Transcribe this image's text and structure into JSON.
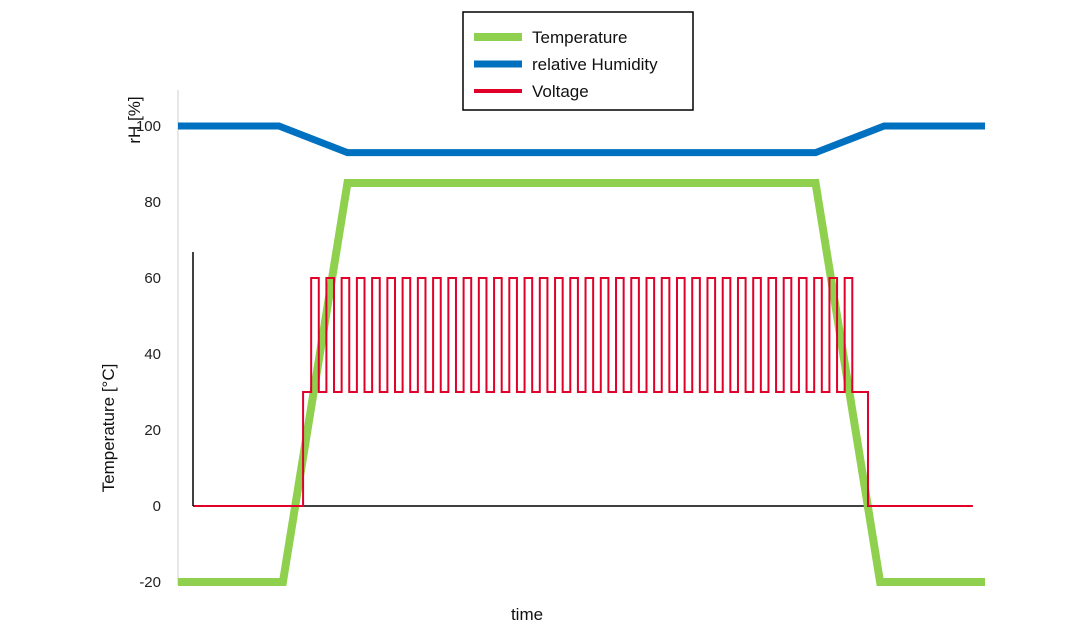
{
  "chart_data": {
    "type": "line",
    "xlabel": "time",
    "ylabel_rh": "rH [%]",
    "ylabel_temp": "Temperature [°C]",
    "ylim": [
      -20,
      110
    ],
    "yticks": [
      -20,
      0,
      20,
      40,
      60,
      80,
      100
    ],
    "grid": false,
    "legend_position": "top-center",
    "series": [
      {
        "name": "Temperature",
        "color": "#8fd14f",
        "x": [
          0,
          13,
          21,
          79,
          87,
          100
        ],
        "y": [
          -20,
          -20,
          85,
          85,
          -20,
          -20
        ]
      },
      {
        "name": "relative Humidity",
        "color": "#0070c0",
        "x": [
          0,
          12.5,
          21,
          79,
          87.5,
          100
        ],
        "y": [
          100,
          100,
          93,
          93,
          100,
          100
        ]
      },
      {
        "name": "Voltage",
        "color": "#e0002a",
        "type": "square-wave",
        "baseline": 0,
        "low": 30,
        "high": 60,
        "x_start": 2,
        "x_step_on": 15.5,
        "x_wave_start": 16.5,
        "x_wave_end": 84.5,
        "x_step_off": 85.5,
        "x_end": 98.5,
        "pulses": 36
      }
    ]
  }
}
